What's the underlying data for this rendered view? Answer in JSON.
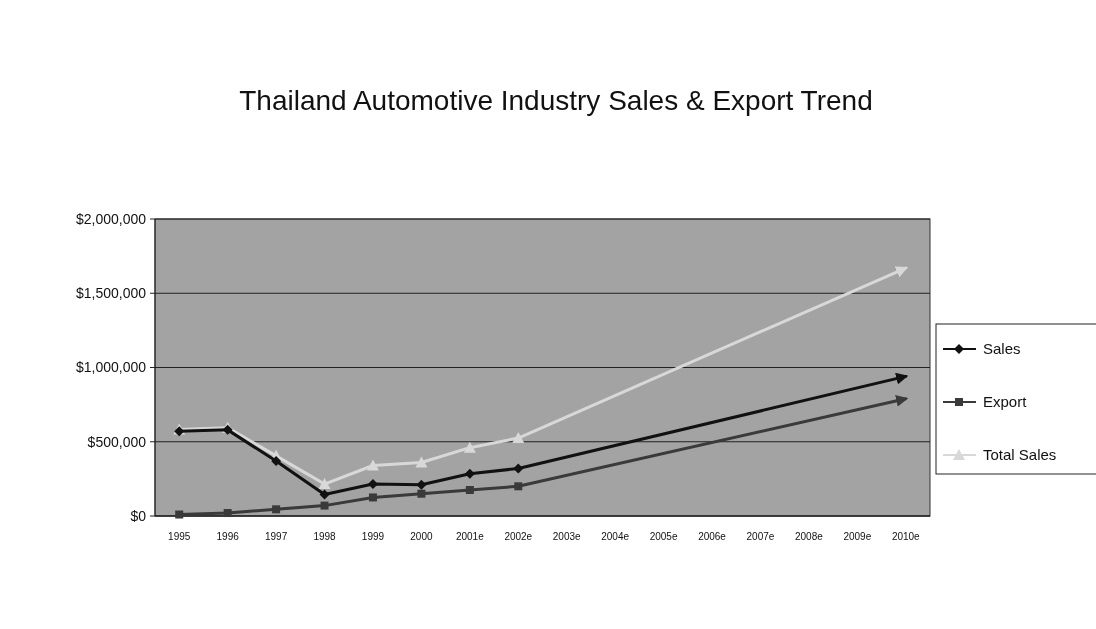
{
  "chart_data": {
    "type": "line",
    "title": "Thailand Automotive Industry Sales & Export Trend",
    "categories": [
      "1995",
      "1996",
      "1997",
      "1998",
      "1999",
      "2000",
      "2001e",
      "2002e",
      "2003e",
      "2004e",
      "2005e",
      "2006e",
      "2007e",
      "2008e",
      "2009e",
      "2010e"
    ],
    "series": [
      {
        "name": "Sales",
        "color": "#111111",
        "marker": "diamond",
        "values": [
          570000,
          580000,
          370000,
          145000,
          215000,
          210000,
          285000,
          320000,
          null,
          null,
          null,
          null,
          null,
          null,
          null,
          940000
        ]
      },
      {
        "name": "Export",
        "color": "#3a3a3a",
        "marker": "square",
        "values": [
          10000,
          20000,
          45000,
          70000,
          125000,
          150000,
          175000,
          200000,
          null,
          null,
          null,
          null,
          null,
          null,
          null,
          790000
        ]
      },
      {
        "name": "Total Sales",
        "color": "#d8d8d8",
        "marker": "triangle",
        "values": [
          583000,
          595000,
          405000,
          215000,
          340000,
          360000,
          460000,
          525000,
          null,
          null,
          null,
          null,
          null,
          null,
          null,
          1670000
        ]
      }
    ],
    "ylim": [
      0,
      2000000
    ],
    "yticks": [
      {
        "value": 0,
        "label": "$0"
      },
      {
        "value": 500000,
        "label": "$500,000"
      },
      {
        "value": 1000000,
        "label": "$1,000,000"
      },
      {
        "value": 1500000,
        "label": "$1,500,000"
      },
      {
        "value": 2000000,
        "label": "$2,000,000"
      }
    ],
    "grid": "y",
    "legend": "right"
  }
}
